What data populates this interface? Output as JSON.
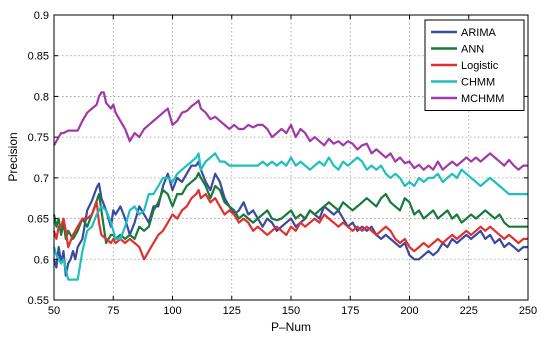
{
  "chart_data": {
    "type": "line",
    "xlabel": "P–Num",
    "ylabel": "Precision",
    "xlim": [
      50,
      250
    ],
    "ylim": [
      0.55,
      0.9
    ],
    "xticks": [
      50,
      75,
      100,
      125,
      150,
      175,
      200,
      225,
      250
    ],
    "yticks": [
      0.55,
      0.6,
      0.65,
      0.7,
      0.75,
      0.8,
      0.85,
      0.9
    ],
    "grid": true,
    "legend_position": "top-right",
    "series": [
      {
        "name": "ARIMA",
        "color": "#3a4aa0",
        "x": [
          50,
          51,
          52,
          53,
          54,
          55,
          56,
          57,
          58,
          59,
          60,
          62,
          64,
          66,
          68,
          69,
          70,
          72,
          74,
          75,
          76,
          78,
          80,
          82,
          84,
          86,
          88,
          90,
          92,
          94,
          96,
          98,
          100,
          102,
          104,
          106,
          108,
          110,
          111,
          112,
          114,
          116,
          118,
          120,
          122,
          124,
          126,
          128,
          130,
          132,
          134,
          136,
          138,
          140,
          142,
          144,
          146,
          148,
          150,
          152,
          154,
          156,
          158,
          160,
          162,
          164,
          166,
          168,
          170,
          172,
          174,
          176,
          178,
          180,
          182,
          184,
          186,
          188,
          190,
          192,
          194,
          196,
          198,
          200,
          202,
          204,
          206,
          208,
          210,
          212,
          214,
          216,
          218,
          220,
          222,
          224,
          226,
          228,
          230,
          232,
          234,
          236,
          238,
          240,
          242,
          244,
          246,
          248,
          250
        ],
        "y": [
          0.6,
          0.59,
          0.615,
          0.595,
          0.61,
          0.58,
          0.595,
          0.6,
          0.61,
          0.6,
          0.615,
          0.625,
          0.66,
          0.672,
          0.688,
          0.693,
          0.675,
          0.66,
          0.64,
          0.66,
          0.655,
          0.665,
          0.65,
          0.63,
          0.645,
          0.665,
          0.655,
          0.645,
          0.665,
          0.665,
          0.69,
          0.705,
          0.685,
          0.7,
          0.695,
          0.705,
          0.715,
          0.715,
          0.72,
          0.71,
          0.695,
          0.685,
          0.705,
          0.695,
          0.675,
          0.665,
          0.655,
          0.66,
          0.67,
          0.655,
          0.66,
          0.65,
          0.64,
          0.65,
          0.645,
          0.635,
          0.64,
          0.645,
          0.65,
          0.64,
          0.645,
          0.65,
          0.66,
          0.655,
          0.65,
          0.665,
          0.66,
          0.655,
          0.66,
          0.65,
          0.64,
          0.645,
          0.635,
          0.64,
          0.635,
          0.64,
          0.63,
          0.625,
          0.63,
          0.625,
          0.62,
          0.615,
          0.62,
          0.605,
          0.6,
          0.6,
          0.605,
          0.61,
          0.605,
          0.61,
          0.62,
          0.615,
          0.625,
          0.62,
          0.625,
          0.63,
          0.625,
          0.63,
          0.635,
          0.625,
          0.63,
          0.62,
          0.625,
          0.615,
          0.62,
          0.615,
          0.61,
          0.615,
          0.615
        ]
      },
      {
        "name": "ANN",
        "color": "#1a7a3a",
        "x": [
          50,
          51,
          52,
          53,
          54,
          55,
          56,
          58,
          60,
          62,
          64,
          66,
          68,
          69,
          70,
          72,
          74,
          75,
          76,
          78,
          80,
          82,
          84,
          86,
          88,
          90,
          92,
          94,
          96,
          98,
          100,
          102,
          104,
          106,
          108,
          110,
          111,
          112,
          114,
          116,
          118,
          120,
          122,
          124,
          126,
          128,
          130,
          132,
          134,
          136,
          138,
          140,
          142,
          144,
          146,
          148,
          150,
          152,
          154,
          156,
          158,
          160,
          162,
          164,
          166,
          168,
          170,
          172,
          174,
          176,
          178,
          180,
          182,
          184,
          186,
          188,
          190,
          192,
          194,
          196,
          198,
          200,
          202,
          204,
          206,
          208,
          210,
          212,
          214,
          216,
          218,
          220,
          222,
          224,
          226,
          228,
          230,
          232,
          234,
          236,
          238,
          240,
          242,
          244,
          246,
          248,
          250
        ],
        "y": [
          0.655,
          0.64,
          0.65,
          0.63,
          0.645,
          0.625,
          0.635,
          0.625,
          0.635,
          0.65,
          0.64,
          0.655,
          0.672,
          0.68,
          0.66,
          0.62,
          0.63,
          0.63,
          0.625,
          0.63,
          0.625,
          0.63,
          0.625,
          0.64,
          0.635,
          0.64,
          0.66,
          0.67,
          0.685,
          0.68,
          0.665,
          0.68,
          0.68,
          0.69,
          0.695,
          0.7,
          0.706,
          0.7,
          0.69,
          0.675,
          0.69,
          0.685,
          0.67,
          0.665,
          0.66,
          0.65,
          0.655,
          0.65,
          0.645,
          0.65,
          0.655,
          0.66,
          0.65,
          0.648,
          0.65,
          0.655,
          0.66,
          0.65,
          0.655,
          0.65,
          0.66,
          0.655,
          0.66,
          0.665,
          0.67,
          0.665,
          0.66,
          0.67,
          0.665,
          0.66,
          0.665,
          0.67,
          0.675,
          0.67,
          0.665,
          0.675,
          0.68,
          0.67,
          0.665,
          0.66,
          0.675,
          0.67,
          0.655,
          0.66,
          0.65,
          0.655,
          0.66,
          0.65,
          0.655,
          0.66,
          0.65,
          0.655,
          0.645,
          0.65,
          0.655,
          0.65,
          0.655,
          0.66,
          0.655,
          0.65,
          0.655,
          0.645,
          0.64,
          0.64,
          0.64,
          0.64,
          0.64
        ]
      },
      {
        "name": "Logistic",
        "color": "#e03030",
        "x": [
          50,
          51,
          52,
          53,
          54,
          55,
          56,
          58,
          60,
          62,
          64,
          66,
          68,
          69,
          70,
          72,
          74,
          75,
          76,
          78,
          80,
          82,
          84,
          86,
          88,
          90,
          92,
          94,
          96,
          98,
          100,
          102,
          104,
          106,
          108,
          110,
          111,
          112,
          114,
          116,
          118,
          120,
          122,
          124,
          126,
          128,
          130,
          132,
          134,
          136,
          138,
          140,
          142,
          144,
          146,
          148,
          150,
          152,
          154,
          156,
          158,
          160,
          162,
          164,
          166,
          168,
          170,
          172,
          174,
          176,
          178,
          180,
          182,
          184,
          186,
          188,
          190,
          192,
          194,
          196,
          198,
          200,
          202,
          204,
          206,
          208,
          210,
          212,
          214,
          216,
          218,
          220,
          222,
          224,
          226,
          228,
          230,
          232,
          234,
          236,
          238,
          240,
          242,
          244,
          246,
          248,
          250
        ],
        "y": [
          0.635,
          0.625,
          0.64,
          0.64,
          0.65,
          0.635,
          0.615,
          0.63,
          0.64,
          0.65,
          0.65,
          0.655,
          0.67,
          0.645,
          0.63,
          0.625,
          0.62,
          0.625,
          0.62,
          0.625,
          0.62,
          0.625,
          0.62,
          0.615,
          0.6,
          0.61,
          0.62,
          0.63,
          0.635,
          0.645,
          0.655,
          0.65,
          0.66,
          0.665,
          0.675,
          0.68,
          0.685,
          0.675,
          0.68,
          0.67,
          0.675,
          0.665,
          0.655,
          0.66,
          0.655,
          0.645,
          0.65,
          0.645,
          0.635,
          0.64,
          0.635,
          0.63,
          0.635,
          0.64,
          0.635,
          0.63,
          0.64,
          0.635,
          0.645,
          0.64,
          0.645,
          0.65,
          0.645,
          0.655,
          0.65,
          0.645,
          0.64,
          0.645,
          0.64,
          0.635,
          0.64,
          0.635,
          0.64,
          0.635,
          0.63,
          0.635,
          0.64,
          0.635,
          0.625,
          0.62,
          0.625,
          0.615,
          0.61,
          0.615,
          0.62,
          0.615,
          0.62,
          0.625,
          0.62,
          0.625,
          0.63,
          0.625,
          0.63,
          0.635,
          0.63,
          0.635,
          0.64,
          0.635,
          0.64,
          0.635,
          0.63,
          0.625,
          0.63,
          0.625,
          0.62,
          0.625,
          0.625
        ]
      },
      {
        "name": "CHMM",
        "color": "#1fbfbf",
        "x": [
          50,
          51,
          52,
          53,
          54,
          56,
          58,
          60,
          62,
          64,
          66,
          68,
          70,
          72,
          74,
          75,
          76,
          78,
          80,
          82,
          84,
          86,
          88,
          90,
          92,
          94,
          96,
          98,
          100,
          102,
          104,
          106,
          108,
          110,
          111,
          112,
          114,
          116,
          118,
          120,
          122,
          124,
          126,
          128,
          130,
          132,
          134,
          136,
          138,
          140,
          142,
          144,
          146,
          148,
          150,
          152,
          154,
          156,
          158,
          160,
          162,
          164,
          166,
          168,
          170,
          172,
          174,
          176,
          178,
          180,
          182,
          184,
          186,
          188,
          190,
          192,
          194,
          196,
          198,
          200,
          202,
          204,
          206,
          208,
          210,
          212,
          214,
          216,
          218,
          220,
          222,
          224,
          226,
          228,
          230,
          232,
          234,
          236,
          238,
          240,
          242,
          244,
          246,
          248,
          250
        ],
        "y": [
          0.615,
          0.605,
          0.6,
          0.595,
          0.6,
          0.575,
          0.575,
          0.575,
          0.61,
          0.635,
          0.64,
          0.655,
          0.665,
          0.66,
          0.645,
          0.635,
          0.625,
          0.625,
          0.64,
          0.66,
          0.665,
          0.655,
          0.66,
          0.68,
          0.68,
          0.69,
          0.7,
          0.7,
          0.695,
          0.705,
          0.71,
          0.715,
          0.72,
          0.725,
          0.73,
          0.71,
          0.72,
          0.725,
          0.73,
          0.72,
          0.72,
          0.715,
          0.715,
          0.715,
          0.715,
          0.715,
          0.715,
          0.715,
          0.72,
          0.715,
          0.72,
          0.715,
          0.72,
          0.715,
          0.725,
          0.715,
          0.72,
          0.715,
          0.71,
          0.715,
          0.72,
          0.715,
          0.725,
          0.715,
          0.71,
          0.72,
          0.715,
          0.72,
          0.725,
          0.72,
          0.71,
          0.715,
          0.71,
          0.715,
          0.705,
          0.7,
          0.705,
          0.7,
          0.69,
          0.695,
          0.69,
          0.7,
          0.695,
          0.7,
          0.7,
          0.705,
          0.695,
          0.7,
          0.705,
          0.7,
          0.71,
          0.705,
          0.7,
          0.695,
          0.69,
          0.695,
          0.7,
          0.695,
          0.69,
          0.685,
          0.68,
          0.68,
          0.68,
          0.68,
          0.68
        ]
      },
      {
        "name": "MCHMM",
        "color": "#a03aa8",
        "x": [
          50,
          51,
          52,
          53,
          54,
          56,
          58,
          60,
          62,
          64,
          66,
          68,
          69,
          70,
          71,
          72,
          74,
          75,
          76,
          78,
          80,
          82,
          84,
          86,
          88,
          90,
          92,
          94,
          96,
          98,
          100,
          102,
          104,
          106,
          108,
          110,
          111,
          112,
          114,
          116,
          118,
          120,
          122,
          124,
          126,
          128,
          130,
          132,
          134,
          136,
          138,
          140,
          142,
          144,
          146,
          148,
          150,
          152,
          154,
          156,
          158,
          160,
          162,
          164,
          166,
          168,
          170,
          172,
          174,
          176,
          178,
          180,
          182,
          184,
          186,
          188,
          190,
          192,
          194,
          196,
          198,
          200,
          202,
          204,
          206,
          208,
          210,
          212,
          214,
          216,
          218,
          220,
          222,
          224,
          226,
          228,
          230,
          232,
          234,
          236,
          238,
          240,
          242,
          244,
          246,
          248,
          250
        ],
        "y": [
          0.74,
          0.745,
          0.75,
          0.755,
          0.755,
          0.758,
          0.758,
          0.758,
          0.77,
          0.78,
          0.785,
          0.79,
          0.8,
          0.805,
          0.805,
          0.792,
          0.785,
          0.79,
          0.78,
          0.77,
          0.76,
          0.745,
          0.755,
          0.75,
          0.76,
          0.765,
          0.77,
          0.775,
          0.78,
          0.785,
          0.765,
          0.77,
          0.78,
          0.782,
          0.788,
          0.792,
          0.795,
          0.785,
          0.78,
          0.772,
          0.775,
          0.77,
          0.765,
          0.76,
          0.765,
          0.76,
          0.76,
          0.765,
          0.762,
          0.765,
          0.765,
          0.76,
          0.75,
          0.755,
          0.76,
          0.755,
          0.765,
          0.75,
          0.76,
          0.755,
          0.745,
          0.75,
          0.745,
          0.74,
          0.748,
          0.742,
          0.745,
          0.74,
          0.745,
          0.742,
          0.735,
          0.74,
          0.742,
          0.73,
          0.735,
          0.73,
          0.725,
          0.73,
          0.72,
          0.725,
          0.718,
          0.72,
          0.712,
          0.716,
          0.71,
          0.715,
          0.71,
          0.72,
          0.71,
          0.715,
          0.72,
          0.715,
          0.72,
          0.725,
          0.72,
          0.725,
          0.72,
          0.725,
          0.73,
          0.725,
          0.72,
          0.715,
          0.722,
          0.715,
          0.71,
          0.715,
          0.715
        ]
      }
    ]
  }
}
